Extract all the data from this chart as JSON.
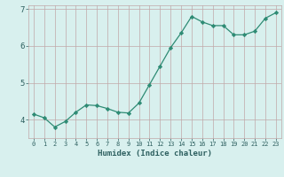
{
  "x": [
    0,
    1,
    2,
    3,
    4,
    5,
    6,
    7,
    8,
    9,
    10,
    11,
    12,
    13,
    14,
    15,
    16,
    17,
    18,
    19,
    20,
    21,
    22,
    23
  ],
  "y": [
    4.15,
    4.05,
    3.8,
    3.95,
    4.2,
    4.4,
    4.38,
    4.3,
    4.2,
    4.18,
    4.45,
    4.95,
    5.45,
    5.95,
    6.35,
    6.8,
    6.65,
    6.55,
    6.55,
    6.3,
    6.3,
    6.4,
    6.75,
    6.9
  ],
  "xlabel": "Humidex (Indice chaleur)",
  "ylim": [
    3.5,
    7.1
  ],
  "xlim": [
    -0.5,
    23.5
  ],
  "yticks": [
    4,
    5,
    6,
    7
  ],
  "xticks": [
    0,
    1,
    2,
    3,
    4,
    5,
    6,
    7,
    8,
    9,
    10,
    11,
    12,
    13,
    14,
    15,
    16,
    17,
    18,
    19,
    20,
    21,
    22,
    23
  ],
  "line_color": "#2e8b74",
  "marker_color": "#2e8b74",
  "bg_color": "#d8f0ee",
  "grid_color": "#c0a8a8",
  "label_color": "#2e6060",
  "tick_color": "#2e6060",
  "axis_bg": "#d8f0ee",
  "xlabel_fontsize": 6.5,
  "ytick_fontsize": 6.5,
  "xtick_fontsize": 5.0
}
